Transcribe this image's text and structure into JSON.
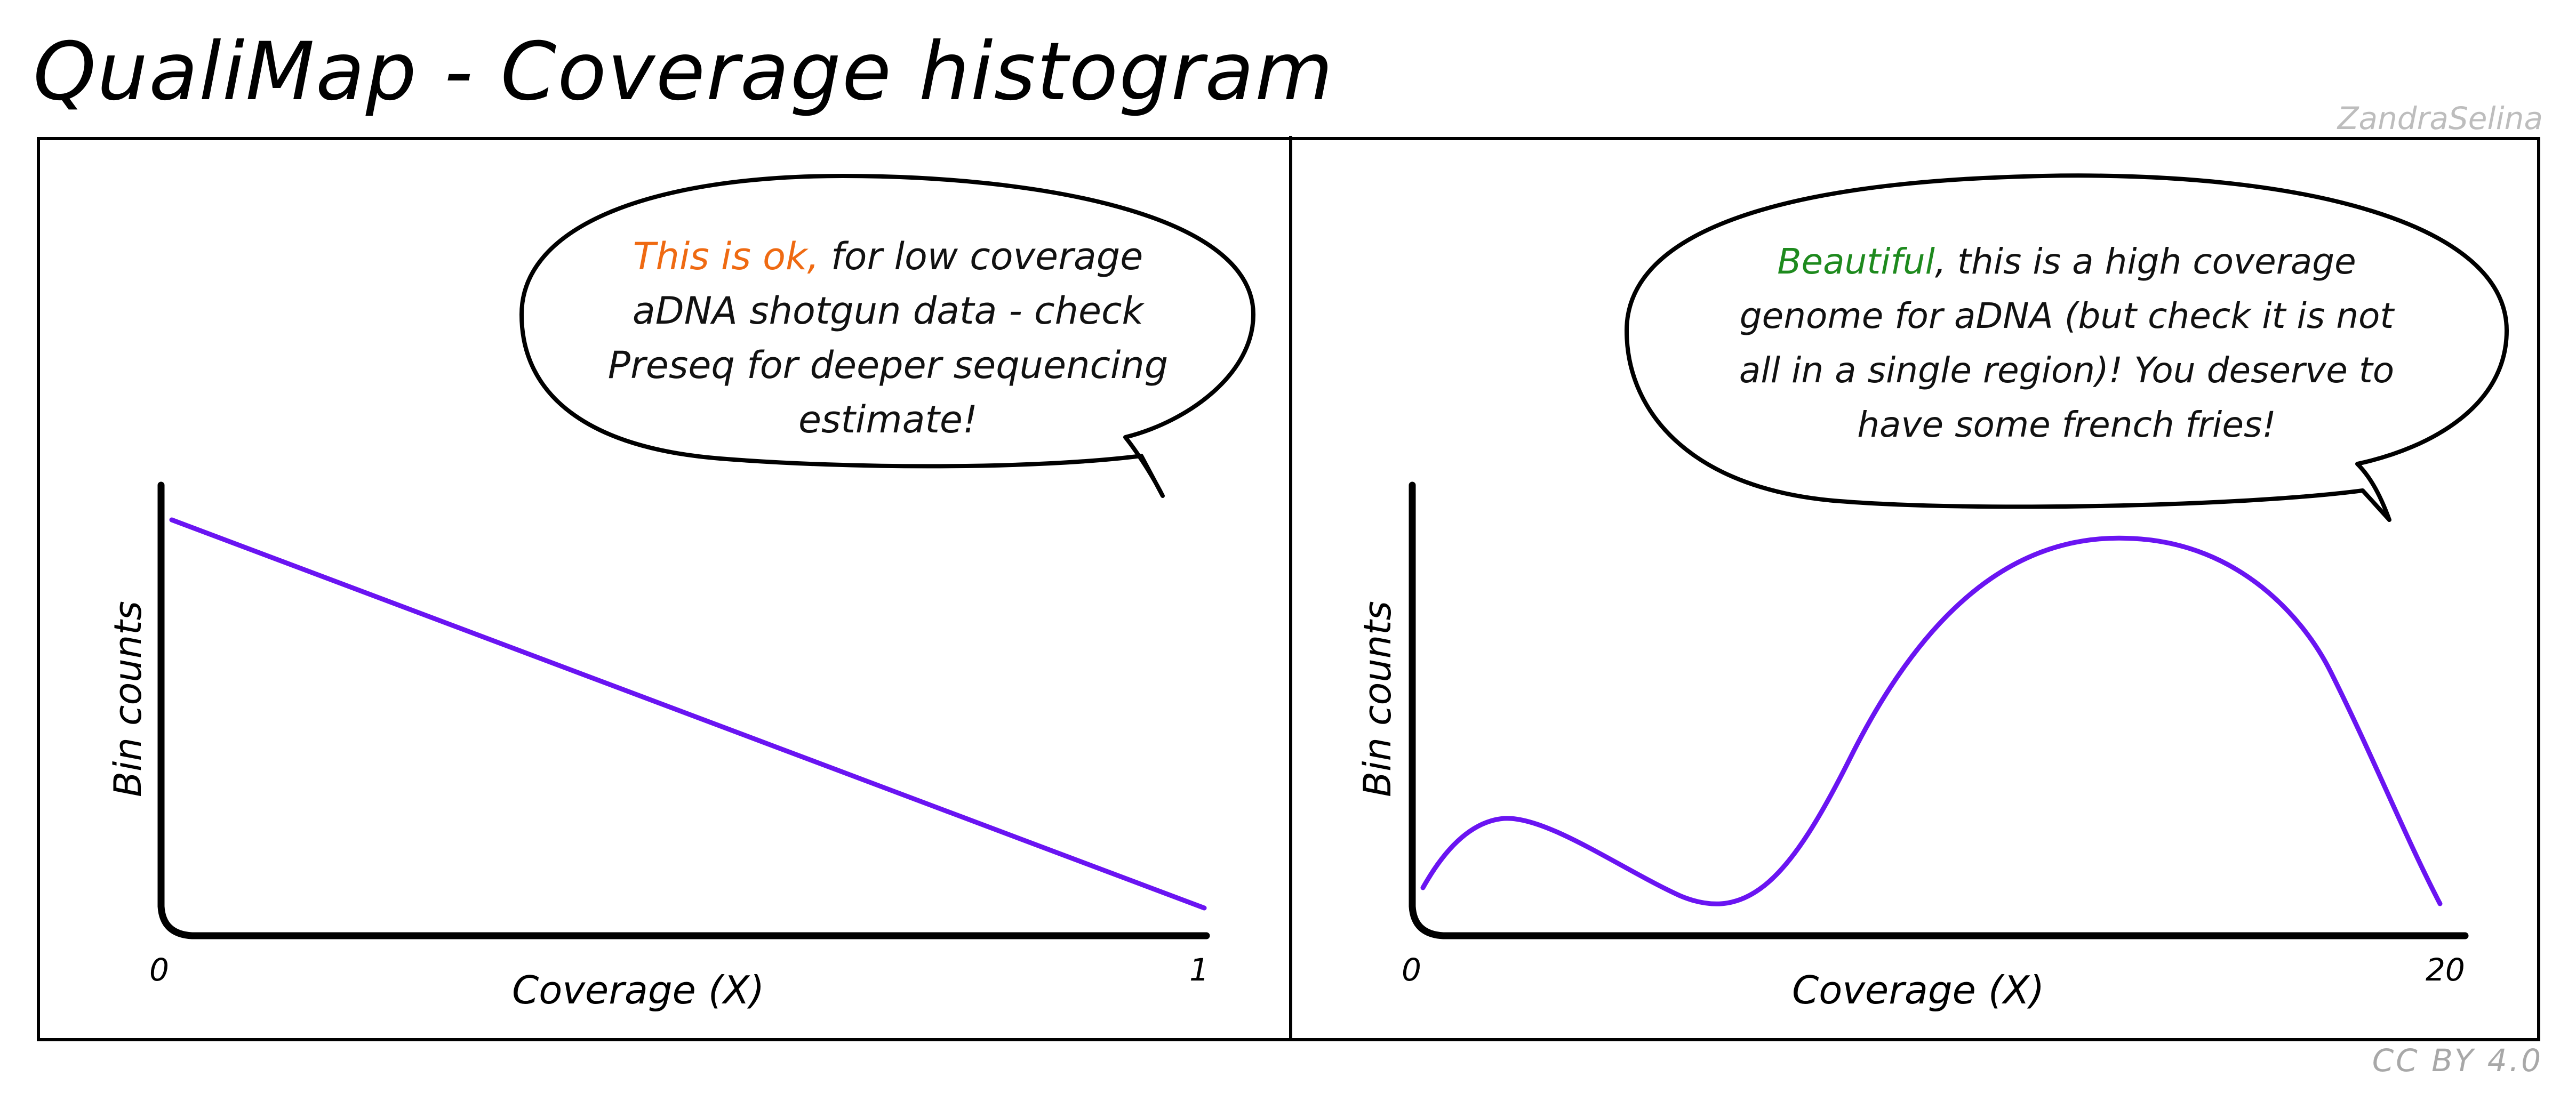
{
  "title": "QualiMap - Coverage histogram",
  "author": "ZandraSelina",
  "license": "CC BY 4.0",
  "colors": {
    "curve": "#6a14f2",
    "ok": "#ef6a12",
    "beautiful": "#1e8a1e"
  },
  "panels": [
    {
      "bubble": {
        "highlight": "This is ok,",
        "lines": [
          " for low coverage",
          "aDNA shotgun data - check",
          "Preseq for deeper sequencing",
          "estimate!"
        ]
      },
      "ylabel": "Bin counts",
      "xlabel": "Coverage (X)",
      "xtick_min": "0",
      "xtick_max": "1",
      "curve_shape": "linear-decline"
    },
    {
      "bubble": {
        "highlight": "Beautiful",
        "lines": [
          ", this is a high coverage",
          "genome for aDNA (but check it is not",
          "all in a single region)! You deserve to",
          "have some french fries!"
        ]
      },
      "ylabel": "Bin counts",
      "xlabel": "Coverage (X)",
      "xtick_min": "0",
      "xtick_max": "20",
      "curve_shape": "bimodal-high-peak"
    }
  ]
}
